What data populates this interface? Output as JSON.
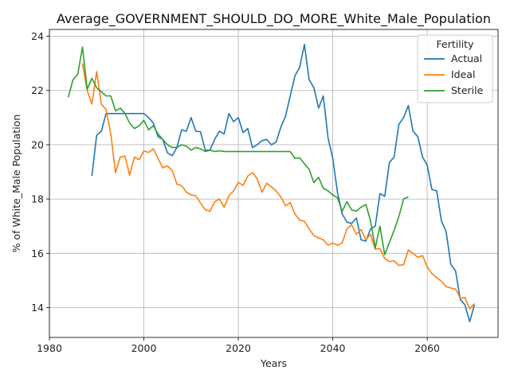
{
  "chart_data": {
    "type": "line",
    "title": "Average_GOVERNMENT_SHOULD_DO_MORE_White_Male_Population",
    "xlabel": "Years",
    "ylabel": "% of White_Male Population",
    "xlim": [
      1980,
      2075
    ],
    "ylim": [
      12.9,
      24.25
    ],
    "xticks": [
      1980,
      2000,
      2020,
      2040,
      2060
    ],
    "yticks": [
      14,
      16,
      18,
      20,
      22,
      24
    ],
    "grid": true,
    "legend": {
      "title": "Fertility",
      "placement": "top-right"
    },
    "series": [
      {
        "name": "Actual",
        "color": "#1f77b4",
        "x": [
          1989,
          1990,
          1991,
          1992,
          1993,
          1994,
          1995,
          1996,
          1997,
          1998,
          1999,
          2000,
          2001,
          2002,
          2003,
          2004,
          2005,
          2006,
          2007,
          2008,
          2009,
          2010,
          2011,
          2012,
          2013,
          2014,
          2015,
          2016,
          2017,
          2018,
          2019,
          2020,
          2021,
          2022,
          2023,
          2024,
          2025,
          2026,
          2027,
          2028,
          2029,
          2030,
          2031,
          2032,
          2033,
          2034,
          2035,
          2036,
          2037,
          2038,
          2039,
          2040,
          2041,
          2042,
          2043,
          2044,
          2045,
          2046,
          2047,
          2048,
          2049,
          2050,
          2051,
          2052,
          2053,
          2054,
          2055,
          2056,
          2057,
          2058,
          2059,
          2060,
          2061,
          2062,
          2063,
          2064,
          2065,
          2066,
          2067,
          2068,
          2069,
          2070
        ],
        "y": [
          18.85,
          20.35,
          20.5,
          21.15,
          21.15,
          21.15,
          21.15,
          21.15,
          21.15,
          21.15,
          21.15,
          21.15,
          21.0,
          20.8,
          20.3,
          20.2,
          19.7,
          19.6,
          19.9,
          20.55,
          20.5,
          21.0,
          20.5,
          20.48,
          19.8,
          19.8,
          20.2,
          20.5,
          20.4,
          21.15,
          20.85,
          21.0,
          20.45,
          20.6,
          19.9,
          20.0,
          20.15,
          20.2,
          20.0,
          20.1,
          20.65,
          21.05,
          21.8,
          22.55,
          22.85,
          23.7,
          22.4,
          22.1,
          21.35,
          21.8,
          20.25,
          19.5,
          18.25,
          17.45,
          17.15,
          17.1,
          17.3,
          16.5,
          16.45,
          16.9,
          17.0,
          18.2,
          18.1,
          19.35,
          19.55,
          20.75,
          21.0,
          21.45,
          20.5,
          20.3,
          19.55,
          19.25,
          18.35,
          18.3,
          17.2,
          16.8,
          15.6,
          15.35,
          14.3,
          14.1,
          13.48,
          14.1
        ]
      },
      {
        "name": "Ideal",
        "color": "#ff7f0e",
        "x": [
          1987,
          1988,
          1989,
          1990,
          1991,
          1992,
          1993,
          1994,
          1995,
          1996,
          1997,
          1998,
          1999,
          2000,
          2001,
          2002,
          2003,
          2004,
          2005,
          2006,
          2007,
          2008,
          2009,
          2010,
          2011,
          2012,
          2013,
          2014,
          2015,
          2016,
          2017,
          2018,
          2019,
          2020,
          2021,
          2022,
          2023,
          2024,
          2025,
          2026,
          2027,
          2028,
          2029,
          2030,
          2031,
          2032,
          2033,
          2034,
          2035,
          2036,
          2037,
          2038,
          2039,
          2040,
          2041,
          2042,
          2043,
          2044,
          2045,
          2046,
          2047,
          2048,
          2049,
          2050,
          2051,
          2052,
          2053,
          2054,
          2055,
          2056,
          2057,
          2058,
          2059,
          2060,
          2061,
          2062,
          2063,
          2064,
          2065,
          2066,
          2067,
          2068,
          2069,
          2070
        ],
        "y": [
          23.0,
          22.0,
          21.5,
          22.7,
          21.5,
          21.3,
          20.4,
          18.97,
          19.55,
          19.58,
          18.88,
          19.55,
          19.45,
          19.77,
          19.72,
          19.85,
          19.5,
          19.15,
          19.22,
          19.05,
          18.55,
          18.5,
          18.25,
          18.15,
          18.12,
          17.85,
          17.6,
          17.55,
          17.9,
          18.0,
          17.7,
          18.12,
          18.3,
          18.62,
          18.5,
          18.85,
          18.97,
          18.75,
          18.25,
          18.58,
          18.45,
          18.3,
          18.08,
          17.75,
          17.87,
          17.45,
          17.22,
          17.18,
          16.9,
          16.65,
          16.57,
          16.5,
          16.3,
          16.38,
          16.3,
          16.38,
          16.9,
          17.05,
          16.7,
          16.88,
          16.5,
          16.7,
          16.15,
          16.18,
          15.8,
          15.7,
          15.72,
          15.55,
          15.58,
          16.12,
          16.0,
          15.85,
          15.92,
          15.5,
          15.25,
          15.1,
          14.97,
          14.77,
          14.72,
          14.68,
          14.35,
          14.37,
          13.95,
          14.15
        ]
      },
      {
        "name": "Sterile",
        "color": "#2ca02c",
        "x": [
          1984,
          1985,
          1986,
          1987,
          1988,
          1989,
          1990,
          1991,
          1992,
          1993,
          1994,
          1995,
          1996,
          1997,
          1998,
          1999,
          2000,
          2001,
          2002,
          2003,
          2004,
          2005,
          2006,
          2007,
          2008,
          2009,
          2010,
          2011,
          2012,
          2013,
          2014,
          2015,
          2016,
          2017,
          2018,
          2019,
          2020,
          2021,
          2022,
          2023,
          2024,
          2025,
          2026,
          2027,
          2028,
          2029,
          2030,
          2031,
          2032,
          2033,
          2034,
          2035,
          2036,
          2037,
          2038,
          2039,
          2040,
          2041,
          2042,
          2043,
          2044,
          2045,
          2046,
          2047,
          2048,
          2049,
          2050,
          2051,
          2052,
          2053,
          2054,
          2055,
          2056
        ],
        "y": [
          21.75,
          22.4,
          22.6,
          23.6,
          22.05,
          22.45,
          22.1,
          21.95,
          21.8,
          21.8,
          21.25,
          21.35,
          21.15,
          20.8,
          20.6,
          20.7,
          20.9,
          20.55,
          20.7,
          20.4,
          20.2,
          20.0,
          19.9,
          19.9,
          20.0,
          19.95,
          19.8,
          19.9,
          19.85,
          19.75,
          19.8,
          19.75,
          19.78,
          19.75,
          19.75,
          19.75,
          19.75,
          19.75,
          19.75,
          19.75,
          19.75,
          19.75,
          19.75,
          19.75,
          19.75,
          19.75,
          19.75,
          19.75,
          19.5,
          19.52,
          19.3,
          19.1,
          18.6,
          18.8,
          18.4,
          18.3,
          18.15,
          18.05,
          17.55,
          17.9,
          17.6,
          17.55,
          17.7,
          17.8,
          17.2,
          16.2,
          17.0,
          15.95,
          16.4,
          16.85,
          17.35,
          18.0,
          18.08
        ]
      }
    ]
  }
}
